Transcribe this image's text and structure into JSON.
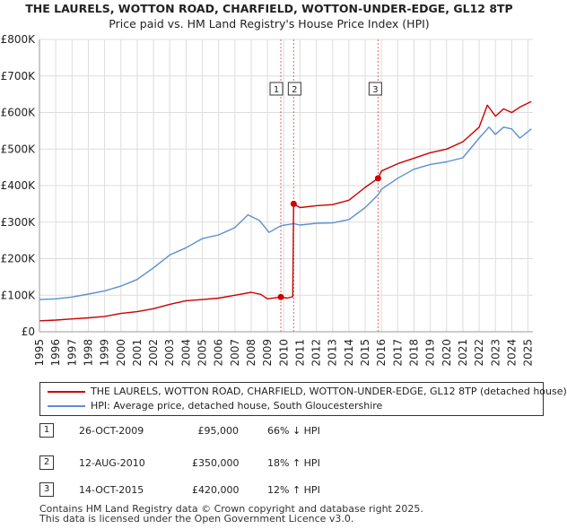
{
  "title": "THE LAURELS, WOTTON ROAD, CHARFIELD, WOTTON-UNDER-EDGE, GL12 8TP",
  "subtitle": "Price paid vs. HM Land Registry's House Price Index (HPI)",
  "colors": {
    "property": "#cc0000",
    "hpi": "#5b8fd0",
    "grid": "#dddddd",
    "vline": "#cc0000"
  },
  "chart_data": {
    "type": "line",
    "xlim": [
      1995.0,
      2025.3
    ],
    "ylim": [
      0,
      800000
    ],
    "y_ticks": [
      0,
      100000,
      200000,
      300000,
      400000,
      500000,
      600000,
      700000,
      800000
    ],
    "y_tick_labels": [
      "£0",
      "£100K",
      "£200K",
      "£300K",
      "£400K",
      "£500K",
      "£600K",
      "£700K",
      "£800K"
    ],
    "x_ticks": [
      1995,
      1996,
      1997,
      1998,
      1999,
      2000,
      2001,
      2002,
      2003,
      2004,
      2005,
      2006,
      2007,
      2008,
      2009,
      2010,
      2011,
      2012,
      2013,
      2014,
      2015,
      2016,
      2017,
      2018,
      2019,
      2020,
      2021,
      2022,
      2023,
      2024,
      2025
    ],
    "x_tick_labels": [
      "1995",
      "1996",
      "1997",
      "1998",
      "1999",
      "2000",
      "2001",
      "2002",
      "2003",
      "2004",
      "2005",
      "2006",
      "2007",
      "2008",
      "2009",
      "2010",
      "2011",
      "2012",
      "2013",
      "2014",
      "2015",
      "2016",
      "2017",
      "2018",
      "2019",
      "2020",
      "2021",
      "2022",
      "2023",
      "2024",
      "2025"
    ],
    "series": [
      {
        "name": "THE LAURELS, WOTTON ROAD, CHARFIELD, WOTTON-UNDER-EDGE, GL12 8TP (detached house)",
        "x": [
          1995,
          1996,
          1997,
          1998,
          1999,
          2000,
          2001,
          2002,
          2003,
          2004,
          2005,
          2006,
          2007,
          2008,
          2008.6,
          2009,
          2009.82,
          2010.2,
          2010.55,
          2010.61,
          2011,
          2012,
          2013,
          2014,
          2015,
          2015.79,
          2016,
          2017,
          2018,
          2019,
          2020,
          2021,
          2022,
          2022.5,
          2023,
          2023.5,
          2024,
          2024.5,
          2025.2
        ],
        "y": [
          30000,
          32000,
          35000,
          38000,
          42000,
          50000,
          55000,
          63000,
          75000,
          85000,
          88000,
          92000,
          100000,
          108000,
          102000,
          90000,
          95000,
          92000,
          96000,
          350000,
          340000,
          345000,
          348000,
          360000,
          395000,
          420000,
          440000,
          460000,
          475000,
          490000,
          500000,
          520000,
          560000,
          620000,
          590000,
          610000,
          600000,
          615000,
          630000
        ]
      },
      {
        "name": "HPI: Average price, detached house, South Gloucestershire",
        "x": [
          1995,
          1996,
          1997,
          1998,
          1999,
          2000,
          2001,
          2002,
          2003,
          2004,
          2005,
          2006,
          2007,
          2007.8,
          2008.5,
          2009.1,
          2009.82,
          2010.61,
          2011,
          2012,
          2013,
          2014,
          2015,
          2015.79,
          2016,
          2017,
          2018,
          2019,
          2020,
          2021,
          2022,
          2022.6,
          2023,
          2023.5,
          2024,
          2024.5,
          2025.2
        ],
        "y": [
          88000,
          90000,
          95000,
          103000,
          112000,
          125000,
          143000,
          175000,
          210000,
          230000,
          255000,
          265000,
          285000,
          320000,
          305000,
          272000,
          290000,
          296000,
          292000,
          297000,
          298000,
          307000,
          340000,
          375000,
          390000,
          420000,
          445000,
          458000,
          465000,
          476000,
          530000,
          560000,
          540000,
          560000,
          555000,
          530000,
          555000
        ]
      }
    ],
    "sales": [
      {
        "label": "1",
        "x": 2009.82,
        "y": 95000
      },
      {
        "label": "2",
        "x": 2010.61,
        "y": 350000
      },
      {
        "label": "3",
        "x": 2015.79,
        "y": 420000
      }
    ]
  },
  "legend": {
    "property_label": "THE LAURELS, WOTTON ROAD, CHARFIELD, WOTTON-UNDER-EDGE, GL12 8TP (detached house)",
    "hpi_label": "HPI: Average price, detached house, South Gloucestershire"
  },
  "sales_table": [
    {
      "num": "1",
      "date": "26-OCT-2009",
      "price": "£95,000",
      "hpi": "66% ↓ HPI"
    },
    {
      "num": "2",
      "date": "12-AUG-2010",
      "price": "£350,000",
      "hpi": "18% ↑ HPI"
    },
    {
      "num": "3",
      "date": "14-OCT-2015",
      "price": "£420,000",
      "hpi": "12% ↑ HPI"
    }
  ],
  "footer": {
    "line1": "Contains HM Land Registry data © Crown copyright and database right 2025.",
    "line2": "This data is licensed under the Open Government Licence v3.0."
  }
}
